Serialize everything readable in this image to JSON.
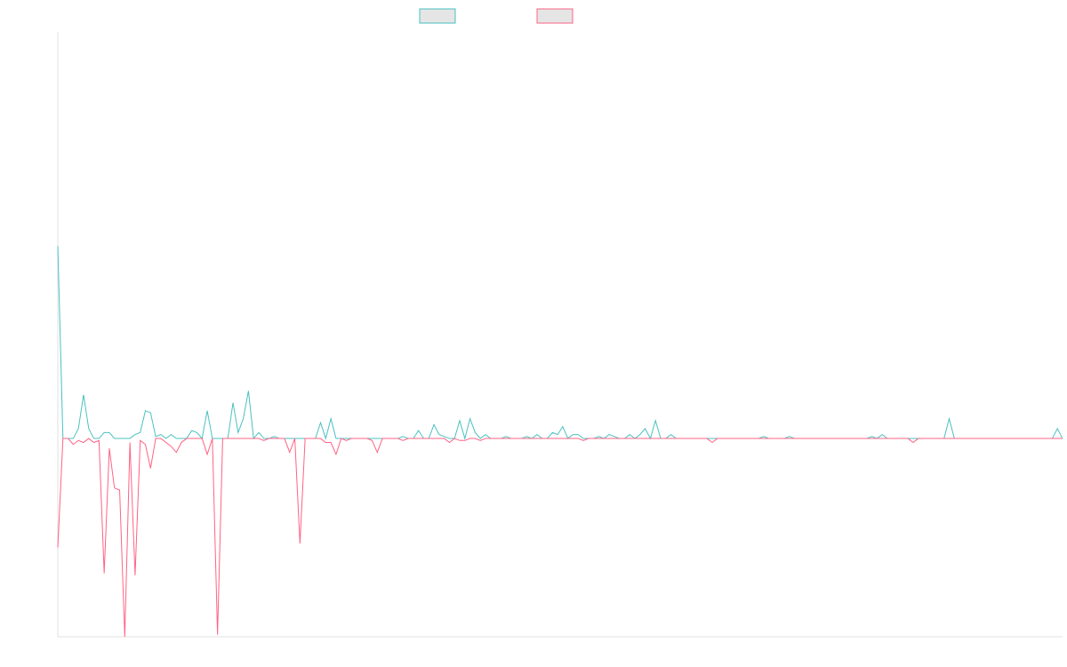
{
  "chart_data": {
    "type": "line",
    "title": "",
    "xlabel": "",
    "ylabel": "",
    "x_range": [
      0,
      195
    ],
    "ylim": [
      -1.0,
      2.05
    ],
    "grid": false,
    "legend_position": "top-center",
    "colors": {
      "series_0": "#4bc0c0",
      "series_1": "#ff6384",
      "legend_fill": "#e5e5e5",
      "axis": "#e0e0e0"
    },
    "series": [
      {
        "values": [
          0.97,
          0,
          0,
          0,
          0.05,
          0.22,
          0.05,
          0,
          0,
          0.03,
          0.03,
          0,
          0,
          0,
          0,
          0.02,
          0.03,
          0.14,
          0.13,
          0.01,
          0.02,
          0,
          0.02,
          0,
          0,
          0,
          0.04,
          0.03,
          0,
          0.14,
          0,
          0,
          0,
          0,
          0.18,
          0.03,
          0.1,
          0.24,
          0,
          0.03,
          0,
          0,
          0.01,
          0,
          0,
          0,
          0,
          0,
          0,
          0,
          0,
          0.08,
          0,
          0.1,
          0,
          0,
          0,
          0,
          0,
          0,
          0,
          0,
          0,
          0,
          0,
          0,
          0,
          0.01,
          0,
          0,
          0.04,
          0,
          0,
          0.07,
          0.02,
          0.01,
          0,
          0,
          0.09,
          0,
          0.1,
          0.03,
          0,
          0.02,
          0,
          0,
          0,
          0.01,
          0,
          0,
          0,
          0.01,
          0,
          0.02,
          0,
          0,
          0.03,
          0.02,
          0.06,
          0,
          0.02,
          0.02,
          0,
          0,
          0,
          0.01,
          0,
          0.02,
          0.01,
          0,
          0,
          0.02,
          0,
          0.02,
          0.05,
          0,
          0.09,
          0,
          0,
          0.02,
          0,
          0,
          0,
          0,
          0,
          0,
          0,
          0,
          0,
          0,
          0,
          0,
          0,
          0,
          0,
          0,
          0,
          0.01,
          0,
          0,
          0,
          0,
          0.01,
          0,
          0,
          0,
          0,
          0,
          0,
          0,
          0,
          0,
          0,
          0,
          0,
          0,
          0,
          0,
          0.01,
          0,
          0.02,
          0,
          0,
          0,
          0,
          0,
          0,
          0,
          0,
          0,
          0,
          0,
          0,
          0.1,
          0,
          0,
          0,
          0,
          0,
          0,
          0,
          0,
          0,
          0,
          0,
          0,
          0,
          0,
          0,
          0,
          0,
          0,
          0,
          0,
          0.05,
          0
        ]
      },
      {
        "values": [
          -0.55,
          0,
          0,
          -0.03,
          -0.01,
          -0.02,
          0,
          -0.02,
          -0.01,
          -0.68,
          -0.05,
          -0.25,
          -0.26,
          -1.0,
          -0.02,
          -0.69,
          -0.01,
          -0.03,
          -0.15,
          0,
          0,
          -0.02,
          -0.04,
          -0.07,
          -0.02,
          0,
          0,
          0,
          0,
          -0.08,
          0,
          -0.99,
          0,
          0,
          0,
          0,
          0,
          0,
          0,
          0,
          -0.01,
          0,
          0,
          0,
          0,
          -0.07,
          0,
          -0.53,
          0,
          0,
          0,
          0,
          -0.02,
          -0.02,
          -0.08,
          0,
          -0.01,
          0,
          0,
          0,
          0,
          -0.01,
          -0.07,
          0,
          0,
          0,
          0,
          -0.01,
          0,
          0,
          0,
          0,
          0,
          0,
          0,
          0,
          -0.02,
          0,
          -0.01,
          -0.01,
          0,
          0,
          -0.01,
          0,
          0,
          0,
          0,
          0,
          0,
          0,
          0,
          0,
          0,
          0,
          0,
          0,
          0,
          0,
          0,
          0,
          0,
          0,
          -0.01,
          0,
          0,
          0,
          0,
          0,
          0,
          0,
          0,
          0,
          0,
          0,
          0,
          0,
          0,
          0,
          0,
          0,
          0,
          0,
          0,
          0,
          0,
          0,
          0,
          -0.02,
          0,
          0,
          0,
          0,
          0,
          0,
          0,
          0,
          0,
          0,
          0,
          0,
          0,
          0,
          0,
          0,
          0,
          0,
          0,
          0,
          0,
          0,
          0,
          0,
          0,
          0,
          0,
          0,
          0,
          0,
          0,
          0,
          0,
          0,
          0,
          0,
          0,
          0,
          -0.02,
          0,
          0,
          0,
          0,
          0,
          0,
          0,
          0,
          0,
          0,
          0,
          0,
          0,
          0,
          0,
          0,
          0,
          0,
          0,
          0,
          0,
          0,
          0,
          0,
          0,
          0,
          0,
          0,
          0
        ]
      }
    ]
  }
}
